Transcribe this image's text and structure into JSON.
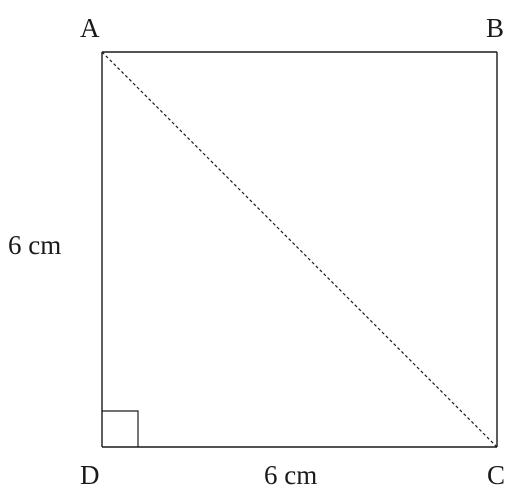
{
  "vertices": {
    "a": "A",
    "b": "B",
    "c": "C",
    "d": "D"
  },
  "sides": {
    "ad_length": "6 cm",
    "dc_length": "6 cm"
  },
  "colors": {
    "stroke": "#1a1a1a",
    "background": "#ffffff"
  }
}
